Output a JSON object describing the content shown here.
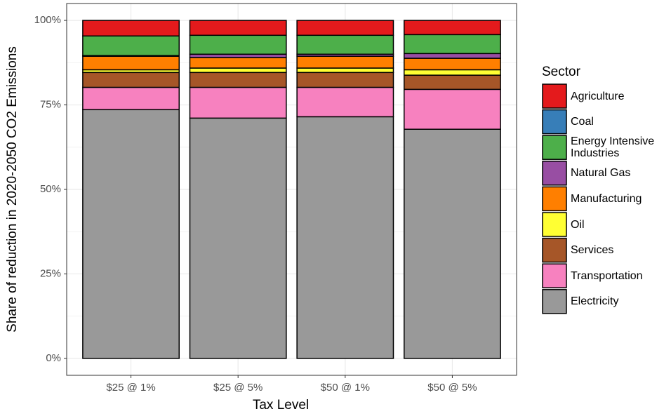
{
  "chart_data": {
    "type": "stacked_bar",
    "x_label": "Tax Level",
    "y_label": "Share of reduction in 2020-2050 CO2 Emissions",
    "legend_title": "Sector",
    "categories": [
      "$25 @ 1%",
      "$25 @ 5%",
      "$50 @ 1%",
      "$50 @ 5%"
    ],
    "series": [
      {
        "name": "Agriculture",
        "color": "#e41a1c",
        "values": [
          4.6,
          4.4,
          4.4,
          4.2
        ]
      },
      {
        "name": "Coal",
        "color": "#377eb8",
        "values": [
          0,
          0,
          0,
          0
        ]
      },
      {
        "name": "Energy Intensive Industries",
        "color": "#4daf4a",
        "values": [
          5.8,
          5.6,
          5.6,
          5.6
        ]
      },
      {
        "name": "Natural Gas",
        "color": "#984ea3",
        "values": [
          0.2,
          1.0,
          0.6,
          1.4
        ]
      },
      {
        "name": "Manufacturing",
        "color": "#ff7f00",
        "values": [
          4.0,
          3.1,
          3.5,
          3.4
        ]
      },
      {
        "name": "Oil",
        "color": "#ffff33",
        "values": [
          0.8,
          1.3,
          1.3,
          1.6
        ]
      },
      {
        "name": "Services",
        "color": "#a65628",
        "values": [
          4.4,
          4.4,
          4.4,
          4.2
        ]
      },
      {
        "name": "Transportation",
        "color": "#f781bf",
        "values": [
          6.6,
          9.1,
          8.7,
          11.8
        ]
      },
      {
        "name": "Electricity",
        "color": "#999999",
        "values": [
          73.6,
          71.1,
          71.5,
          67.8
        ]
      }
    ],
    "ylim": [
      -5,
      105
    ],
    "yticks": [
      {
        "value": 0,
        "label": "0%"
      },
      {
        "value": 25,
        "label": "25%"
      },
      {
        "value": 50,
        "label": "50%"
      },
      {
        "value": 75,
        "label": "75%"
      },
      {
        "value": 100,
        "label": "100%"
      }
    ],
    "grid": true,
    "legend_position": "right"
  }
}
